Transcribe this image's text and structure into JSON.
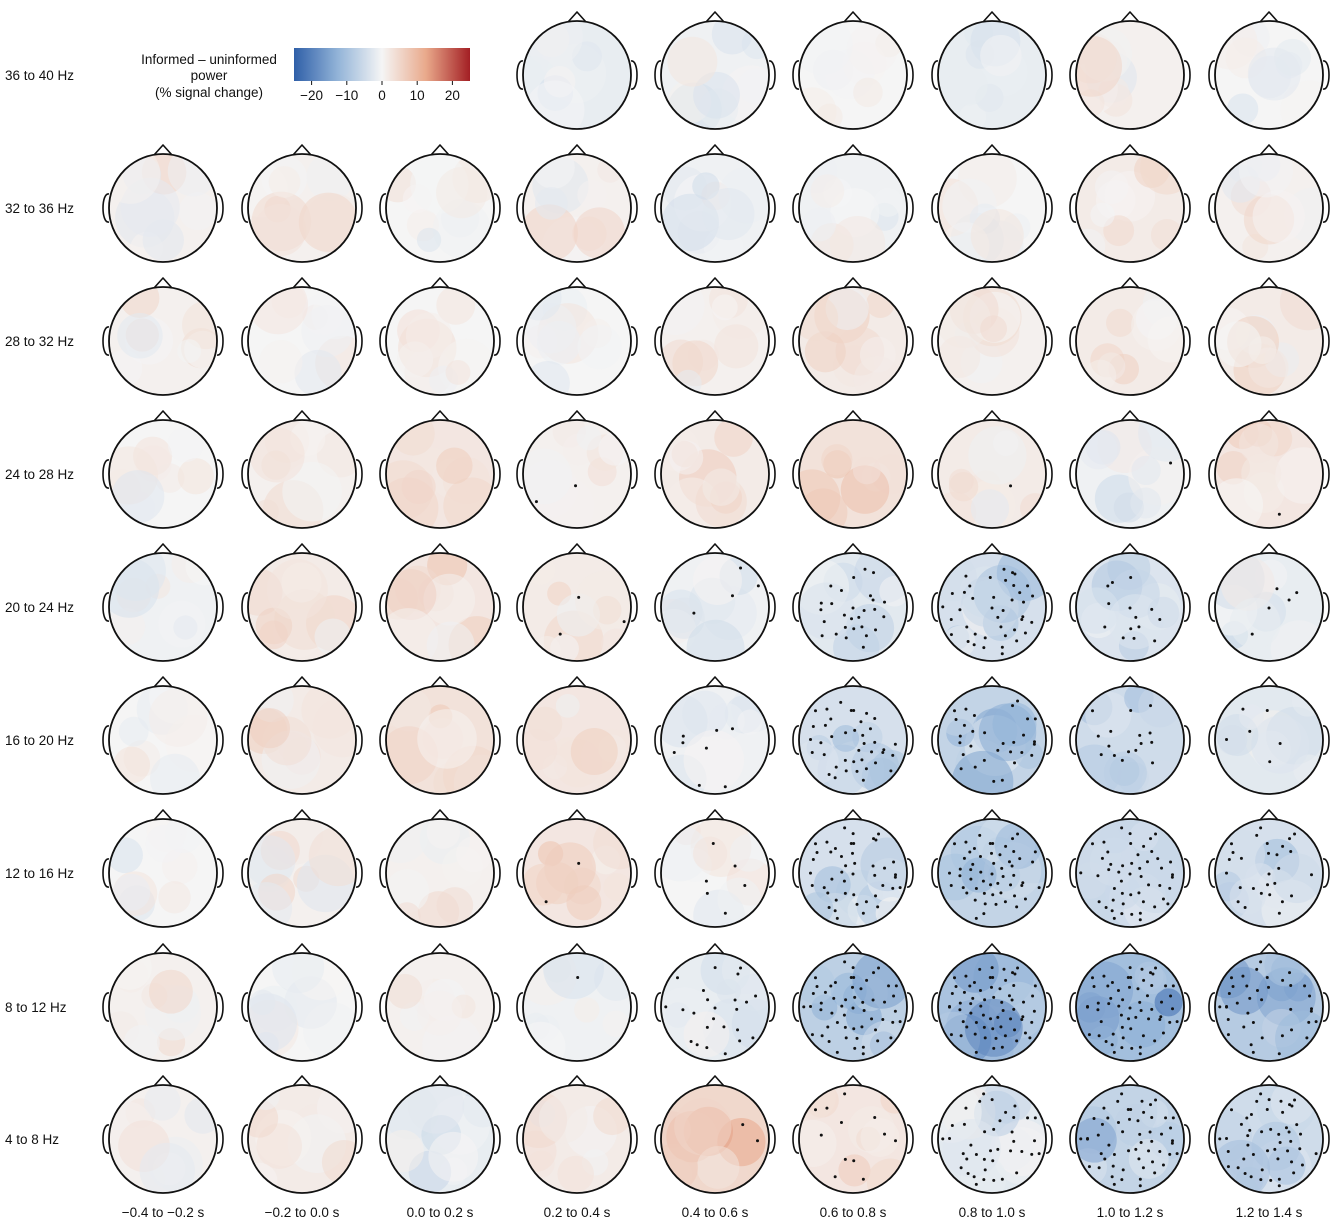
{
  "colorbar": {
    "title_lines": [
      "Informed – uninformed",
      "power",
      "(% signal change)"
    ],
    "ticks": [
      "−20",
      "−10",
      "0",
      "10",
      "20"
    ],
    "tick_values": [
      -20,
      -10,
      0,
      10,
      20
    ],
    "range": [
      -25,
      25
    ],
    "colors": [
      "#2f5fa8",
      "#93b4d8",
      "#f5f5f5",
      "#e9a98b",
      "#a31f24"
    ]
  },
  "row_labels": [
    "36 to 40 Hz",
    "32 to 36 Hz",
    "28 to 32 Hz",
    "24 to 28 Hz",
    "20 to 24 Hz",
    "16 to 20 Hz",
    "12 to 16 Hz",
    "8 to 12 Hz",
    "4 to 8 Hz"
  ],
  "col_labels": [
    "−0.4 to −0.2 s",
    "−0.2 to 0.0 s",
    "0.0 to 0.2 s",
    "0.2 to 0.4 s",
    "0.4 to 0.6 s",
    "0.6 to 0.8 s",
    "0.8 to 1.0 s",
    "1.0 to 1.2 s",
    "1.2 to 1.4 s"
  ],
  "maps": {
    "mean_change": [
      [
        null,
        null,
        null,
        -2,
        -1,
        0,
        -2,
        1,
        0
      ],
      [
        1,
        1,
        0,
        1,
        -1,
        -1,
        0,
        2,
        1
      ],
      [
        1,
        0,
        0,
        0,
        1,
        2,
        1,
        2,
        2
      ],
      [
        0,
        1,
        3,
        1,
        2,
        4,
        2,
        -1,
        3
      ],
      [
        -1,
        2,
        3,
        2,
        -1,
        -3,
        -5,
        -4,
        -2
      ],
      [
        0,
        2,
        4,
        3,
        -1,
        -5,
        -8,
        -6,
        -3
      ],
      [
        0,
        1,
        1,
        3,
        0,
        -5,
        -8,
        -7,
        -5
      ],
      [
        1,
        0,
        1,
        -1,
        -2,
        -9,
        -12,
        -13,
        -10
      ],
      [
        1,
        2,
        -2,
        2,
        6,
        3,
        -3,
        -8,
        -6
      ]
    ],
    "significant_electrodes": [
      [
        0,
        0,
        0,
        0,
        0,
        0,
        0,
        0,
        0
      ],
      [
        0,
        0,
        0,
        0,
        0,
        0,
        0,
        0,
        0
      ],
      [
        0,
        0,
        0,
        0,
        0,
        0,
        0,
        0,
        0
      ],
      [
        0,
        0,
        0,
        2,
        0,
        0,
        1,
        1,
        1
      ],
      [
        0,
        0,
        0,
        3,
        4,
        28,
        40,
        14,
        5
      ],
      [
        0,
        0,
        0,
        0,
        8,
        40,
        30,
        16,
        6
      ],
      [
        0,
        0,
        0,
        2,
        6,
        45,
        55,
        50,
        28
      ],
      [
        0,
        0,
        0,
        1,
        24,
        55,
        65,
        60,
        38
      ],
      [
        0,
        0,
        0,
        0,
        2,
        12,
        40,
        55,
        48
      ]
    ]
  }
}
